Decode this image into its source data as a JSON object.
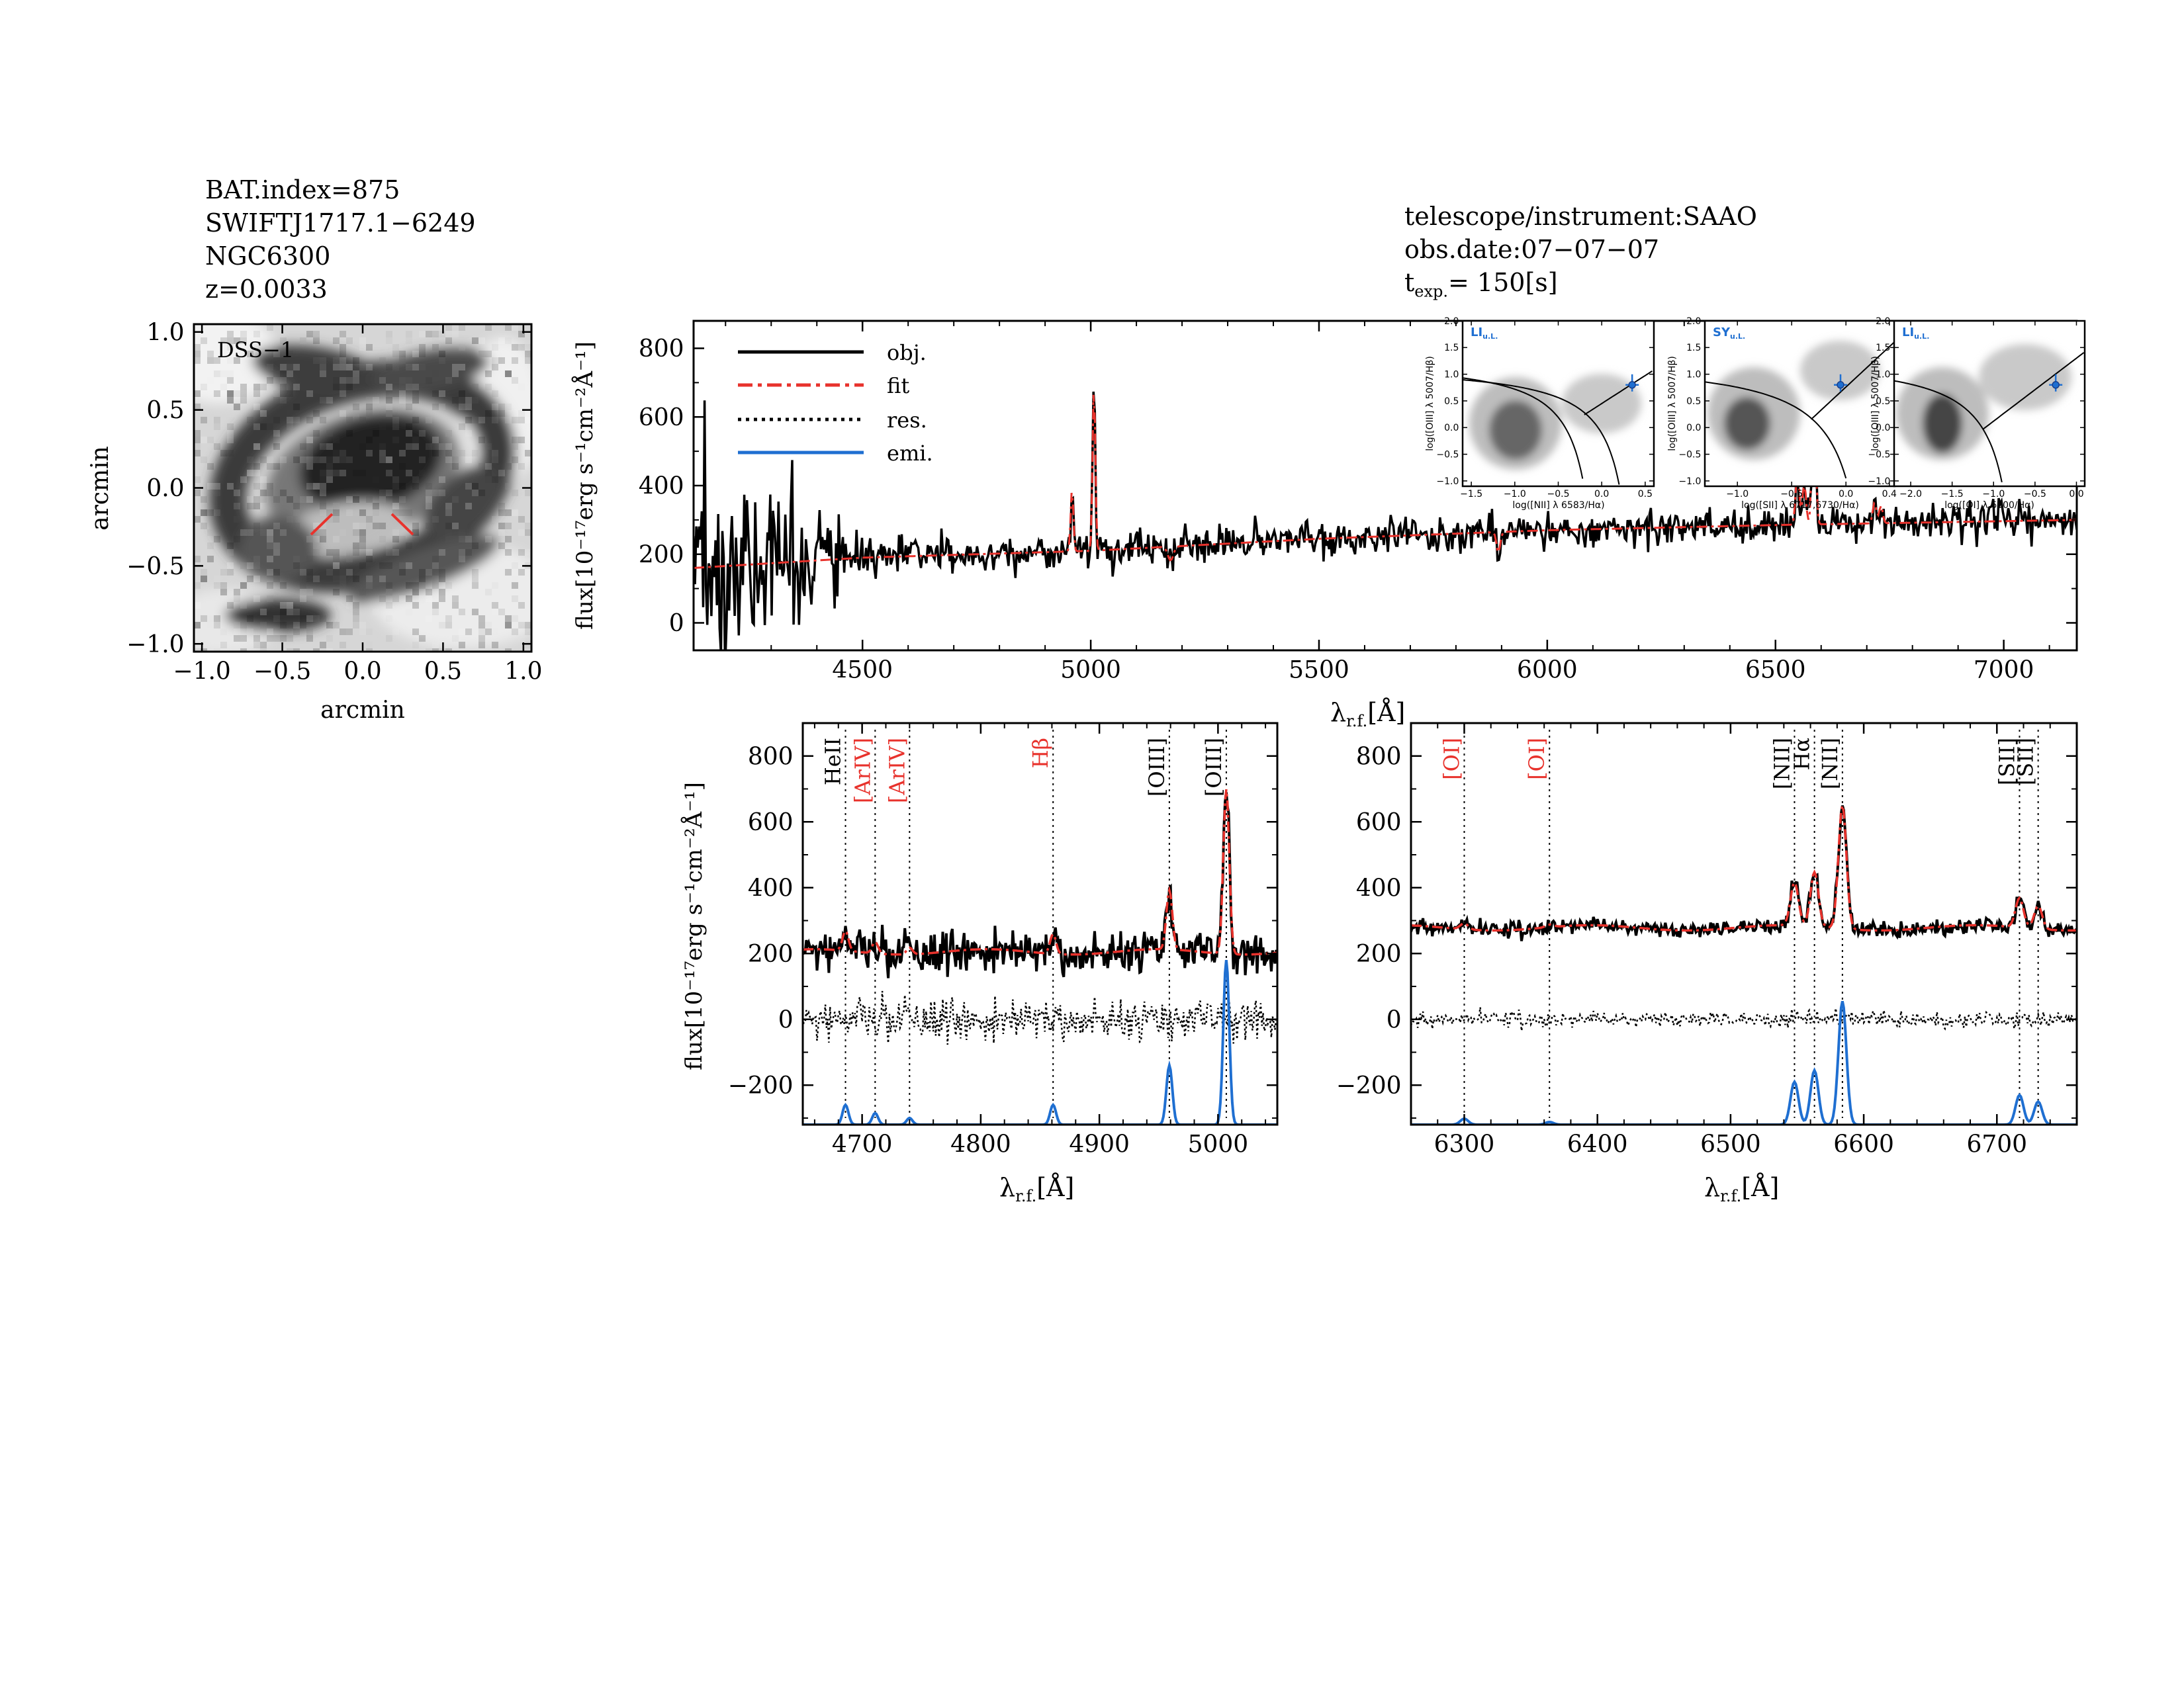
{
  "header_left": {
    "lines": [
      "BAT.index=875",
      "SWIFTJ1717.1−6249",
      "NGC6300",
      "z=0.0033"
    ]
  },
  "header_right": {
    "lines": [
      "telescope/instrument:SAAO",
      "obs.date:07−07−07"
    ],
    "texp_label": "t",
    "texp_sub": "exp.",
    "texp_value": "= 150[s]"
  },
  "colors": {
    "obj": "#000000",
    "fit": "#e8322c",
    "res": "#000000",
    "emi": "#1f6fd1",
    "mark_red": "#e8322c"
  },
  "image_panel": {
    "label": "DSS−1",
    "xlabel": "arcmin",
    "ylabel": "arcmin",
    "xticks": [
      "−1.0",
      "−0.5",
      "0.0",
      "0.5",
      "1.0"
    ],
    "yticks": [
      "1.0",
      "0.5",
      "0.0",
      "−0.5",
      "−1.0"
    ]
  },
  "chart_data": [
    {
      "type": "line",
      "id": "full_spectrum",
      "xlabel_main": "λ",
      "xlabel_sub": "r.f.",
      "xlabel_unit": "[Å]",
      "ylabel": "flux[10⁻¹⁷erg s⁻¹cm⁻²Å⁻¹]",
      "xlim": [
        4130,
        7160
      ],
      "ylim": [
        -80,
        880
      ],
      "xticks": [
        4500,
        5000,
        5500,
        6000,
        6500,
        7000
      ],
      "yticks": [
        0,
        200,
        400,
        600,
        800
      ],
      "legend": [
        "obj.",
        "fit",
        "res.",
        "emi."
      ],
      "continuum": [
        [
          4130,
          160
        ],
        [
          4500,
          190
        ],
        [
          5000,
          210
        ],
        [
          5500,
          245
        ],
        [
          6000,
          270
        ],
        [
          6500,
          285
        ],
        [
          7160,
          300
        ]
      ],
      "lines": [
        {
          "wave": 4959,
          "amp": 180,
          "sigma": 3
        },
        {
          "wave": 5007,
          "amp": 480,
          "sigma": 3
        },
        {
          "wave": 6548,
          "amp": 150,
          "sigma": 4
        },
        {
          "wave": 6563,
          "amp": 120,
          "sigma": 4
        },
        {
          "wave": 6584,
          "amp": 400,
          "sigma": 4
        },
        {
          "wave": 6717,
          "amp": 60,
          "sigma": 4
        },
        {
          "wave": 6731,
          "amp": 50,
          "sigma": 4
        }
      ],
      "absorption": [
        {
          "wave": 5175,
          "amp": -40,
          "sigma": 6
        },
        {
          "wave": 5893,
          "amp": -60,
          "sigma": 4
        }
      ],
      "noise_blue": 70,
      "noise_red": 25
    },
    {
      "type": "line",
      "id": "hbeta_zoom",
      "xlabel_main": "λ",
      "xlabel_sub": "r.f.",
      "xlabel_unit": "[Å]",
      "ylabel": "flux[10⁻¹⁷erg s⁻¹cm⁻²Å⁻¹]",
      "xlim": [
        4650,
        5050
      ],
      "ylim": [
        -320,
        900
      ],
      "xticks": [
        4700,
        4800,
        4900,
        5000
      ],
      "yticks": [
        -200,
        0,
        200,
        400,
        600,
        800
      ],
      "continuum_level": 205,
      "emi_base": -320,
      "lines": [
        {
          "wave": 4686,
          "amp": 60,
          "sigma": 2.5
        },
        {
          "wave": 4711,
          "amp": 35,
          "sigma": 2.5
        },
        {
          "wave": 4740,
          "amp": 20,
          "sigma": 2.5
        },
        {
          "wave": 4861,
          "amp": 60,
          "sigma": 2.5
        },
        {
          "wave": 4959,
          "amp": 180,
          "sigma": 2.5
        },
        {
          "wave": 5007,
          "amp": 500,
          "sigma": 2.5
        }
      ],
      "markers": [
        {
          "wave": 4686,
          "label": "HeII",
          "color": "black",
          "bracket": false
        },
        {
          "wave": 4711,
          "label": "[ArIV]",
          "color": "red",
          "bracket": true
        },
        {
          "wave": 4740,
          "label": "[ArIV]",
          "color": "red",
          "bracket": true
        },
        {
          "wave": 4861,
          "label": "Hβ",
          "color": "red",
          "bracket": false
        },
        {
          "wave": 4959,
          "label": "[OIII]",
          "color": "black",
          "bracket": true
        },
        {
          "wave": 5007,
          "label": "[OIII]",
          "color": "black",
          "bracket": true
        }
      ]
    },
    {
      "type": "line",
      "id": "halpha_zoom",
      "xlabel_main": "λ",
      "xlabel_sub": "r.f.",
      "xlabel_unit": "[Å]",
      "xlim": [
        6260,
        6760
      ],
      "ylim": [
        -320,
        900
      ],
      "xticks": [
        6300,
        6400,
        6500,
        6600,
        6700
      ],
      "yticks": [
        -200,
        0,
        200,
        400,
        600,
        800
      ],
      "continuum_level": 278,
      "emi_base": -320,
      "lines": [
        {
          "wave": 6300,
          "amp": 18,
          "sigma": 3
        },
        {
          "wave": 6364,
          "amp": 8,
          "sigma": 3
        },
        {
          "wave": 6548,
          "amp": 130,
          "sigma": 3
        },
        {
          "wave": 6563,
          "amp": 165,
          "sigma": 3
        },
        {
          "wave": 6584,
          "amp": 375,
          "sigma": 3
        },
        {
          "wave": 6717,
          "amp": 90,
          "sigma": 3
        },
        {
          "wave": 6731,
          "amp": 70,
          "sigma": 3
        }
      ],
      "markers": [
        {
          "wave": 6300,
          "label": "[OI]",
          "color": "red",
          "bracket": true
        },
        {
          "wave": 6364,
          "label": "[OI]",
          "color": "red",
          "bracket": true
        },
        {
          "wave": 6548,
          "label": "[NII]",
          "color": "black",
          "bracket": true
        },
        {
          "wave": 6563,
          "label": "Hα",
          "color": "black",
          "bracket": false
        },
        {
          "wave": 6584,
          "label": "[NII]",
          "color": "black",
          "bracket": true
        },
        {
          "wave": 6717,
          "label": "[SII]",
          "color": "black",
          "bracket": true
        },
        {
          "wave": 6731,
          "label": "[SII]",
          "color": "black",
          "bracket": true
        }
      ]
    },
    {
      "type": "scatter",
      "id": "bpt_nii",
      "tag": "LI",
      "tag_sub": "u.L.",
      "xlabel": "log([NII] λ 6583/Hα)",
      "ylabel": "log([OIII] λ 5007/Hβ)",
      "xlim": [
        -1.6,
        0.6
      ],
      "ylim": [
        -1.1,
        2.0
      ],
      "xticks": [
        "−1.5",
        "−1.0",
        "−0.5",
        "0.0",
        "0.5"
      ],
      "xtick_vals": [
        -1.5,
        -1.0,
        -0.5,
        0.0,
        0.5
      ],
      "yticks": [
        "−1.0",
        "−0.5",
        "0.0",
        "0.5",
        "1.0",
        "1.5",
        "2.0"
      ],
      "ytick_vals": [
        -1,
        -0.5,
        0,
        0.5,
        1,
        1.5,
        2
      ],
      "point": {
        "x": 0.35,
        "y": 0.8
      }
    },
    {
      "type": "scatter",
      "id": "bpt_sii",
      "tag": "SY",
      "tag_sub": "u.L.",
      "xlabel": "log([SII] λ 6717,6730/Hα)",
      "ylabel": "log([OIII] λ 5007/Hβ)",
      "xlim": [
        -1.3,
        0.45
      ],
      "ylim": [
        -1.1,
        2.0
      ],
      "xticks": [
        "−1.0",
        "−0.5",
        "0.0",
        "0.4"
      ],
      "xtick_vals": [
        -1.0,
        -0.5,
        0.0,
        0.4
      ],
      "yticks": [
        "−1.0",
        "−0.5",
        "0.0",
        "0.5",
        "1.0",
        "1.5",
        "2.0"
      ],
      "ytick_vals": [
        -1,
        -0.5,
        0,
        0.5,
        1,
        1.5,
        2
      ],
      "point": {
        "x": -0.05,
        "y": 0.8
      }
    },
    {
      "type": "scatter",
      "id": "bpt_oi",
      "tag": "LI",
      "tag_sub": "u.L.",
      "xlabel": "log([OI] λ 6300/Hα)",
      "ylabel": "log([OIII] λ 5007/Hβ)",
      "xlim": [
        -2.2,
        0.1
      ],
      "ylim": [
        -1.1,
        2.0
      ],
      "xticks": [
        "−2.0",
        "−1.5",
        "−1.0",
        "−0.5",
        "0.0"
      ],
      "xtick_vals": [
        -2.0,
        -1.5,
        -1.0,
        -0.5,
        0.0
      ],
      "yticks": [
        "−1.0",
        "−0.5",
        "0.0",
        "0.5",
        "1.0",
        "1.5",
        "2.0"
      ],
      "ytick_vals": [
        -1,
        -0.5,
        0,
        0.5,
        1,
        1.5,
        2
      ],
      "point": {
        "x": -0.25,
        "y": 0.8
      }
    }
  ]
}
